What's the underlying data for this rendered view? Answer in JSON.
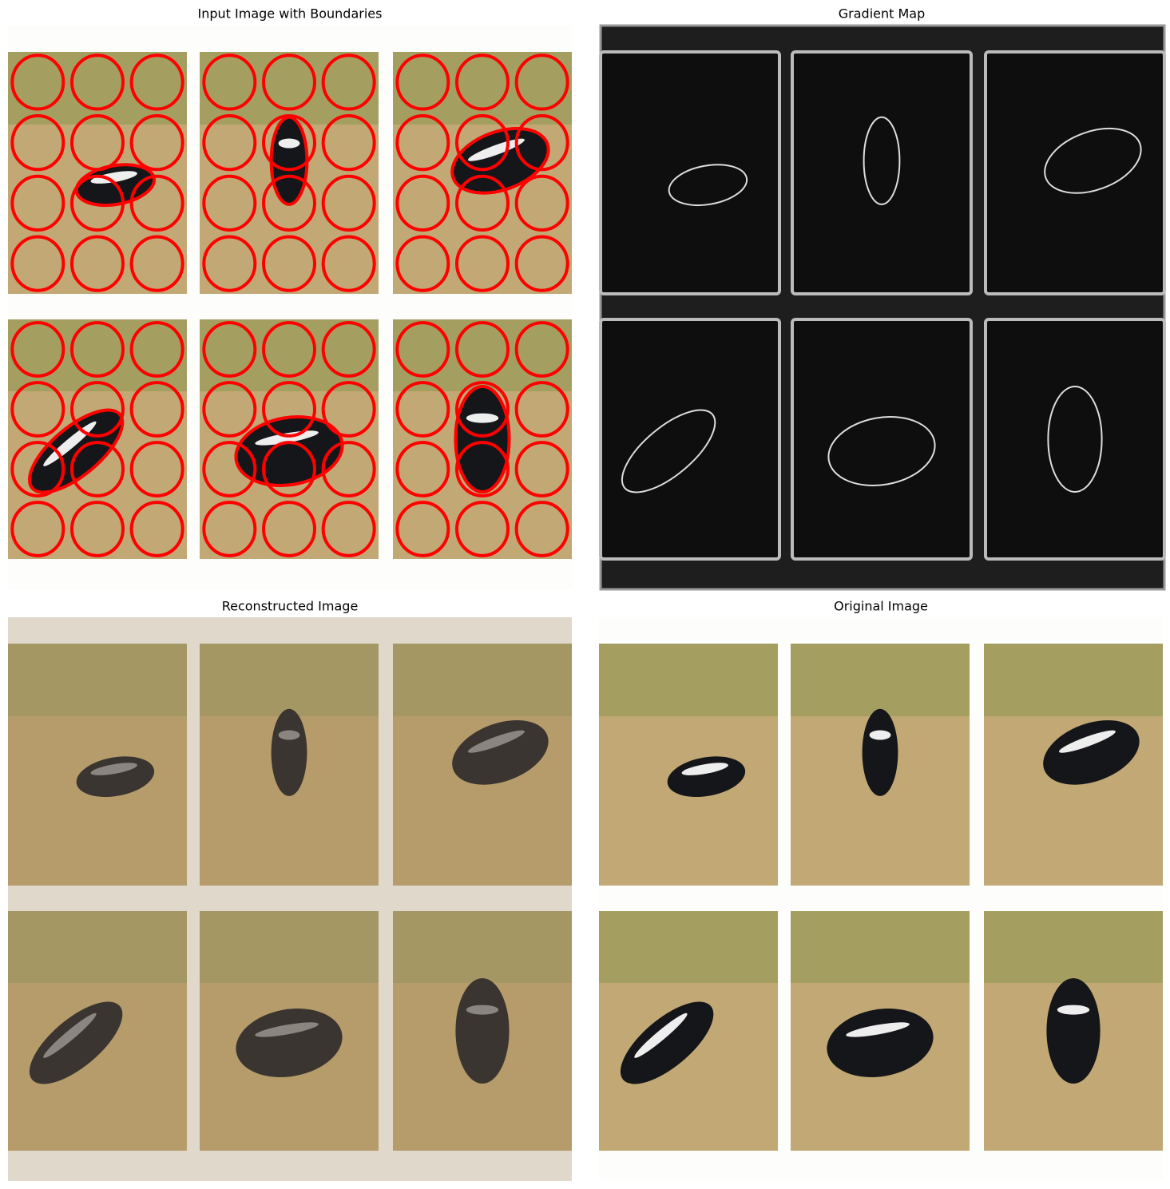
{
  "panels": [
    {
      "title": "Input Image with Boundaries"
    },
    {
      "title": "Gradient Map"
    },
    {
      "title": "Reconstructed Image"
    },
    {
      "title": "Original Image"
    }
  ]
}
